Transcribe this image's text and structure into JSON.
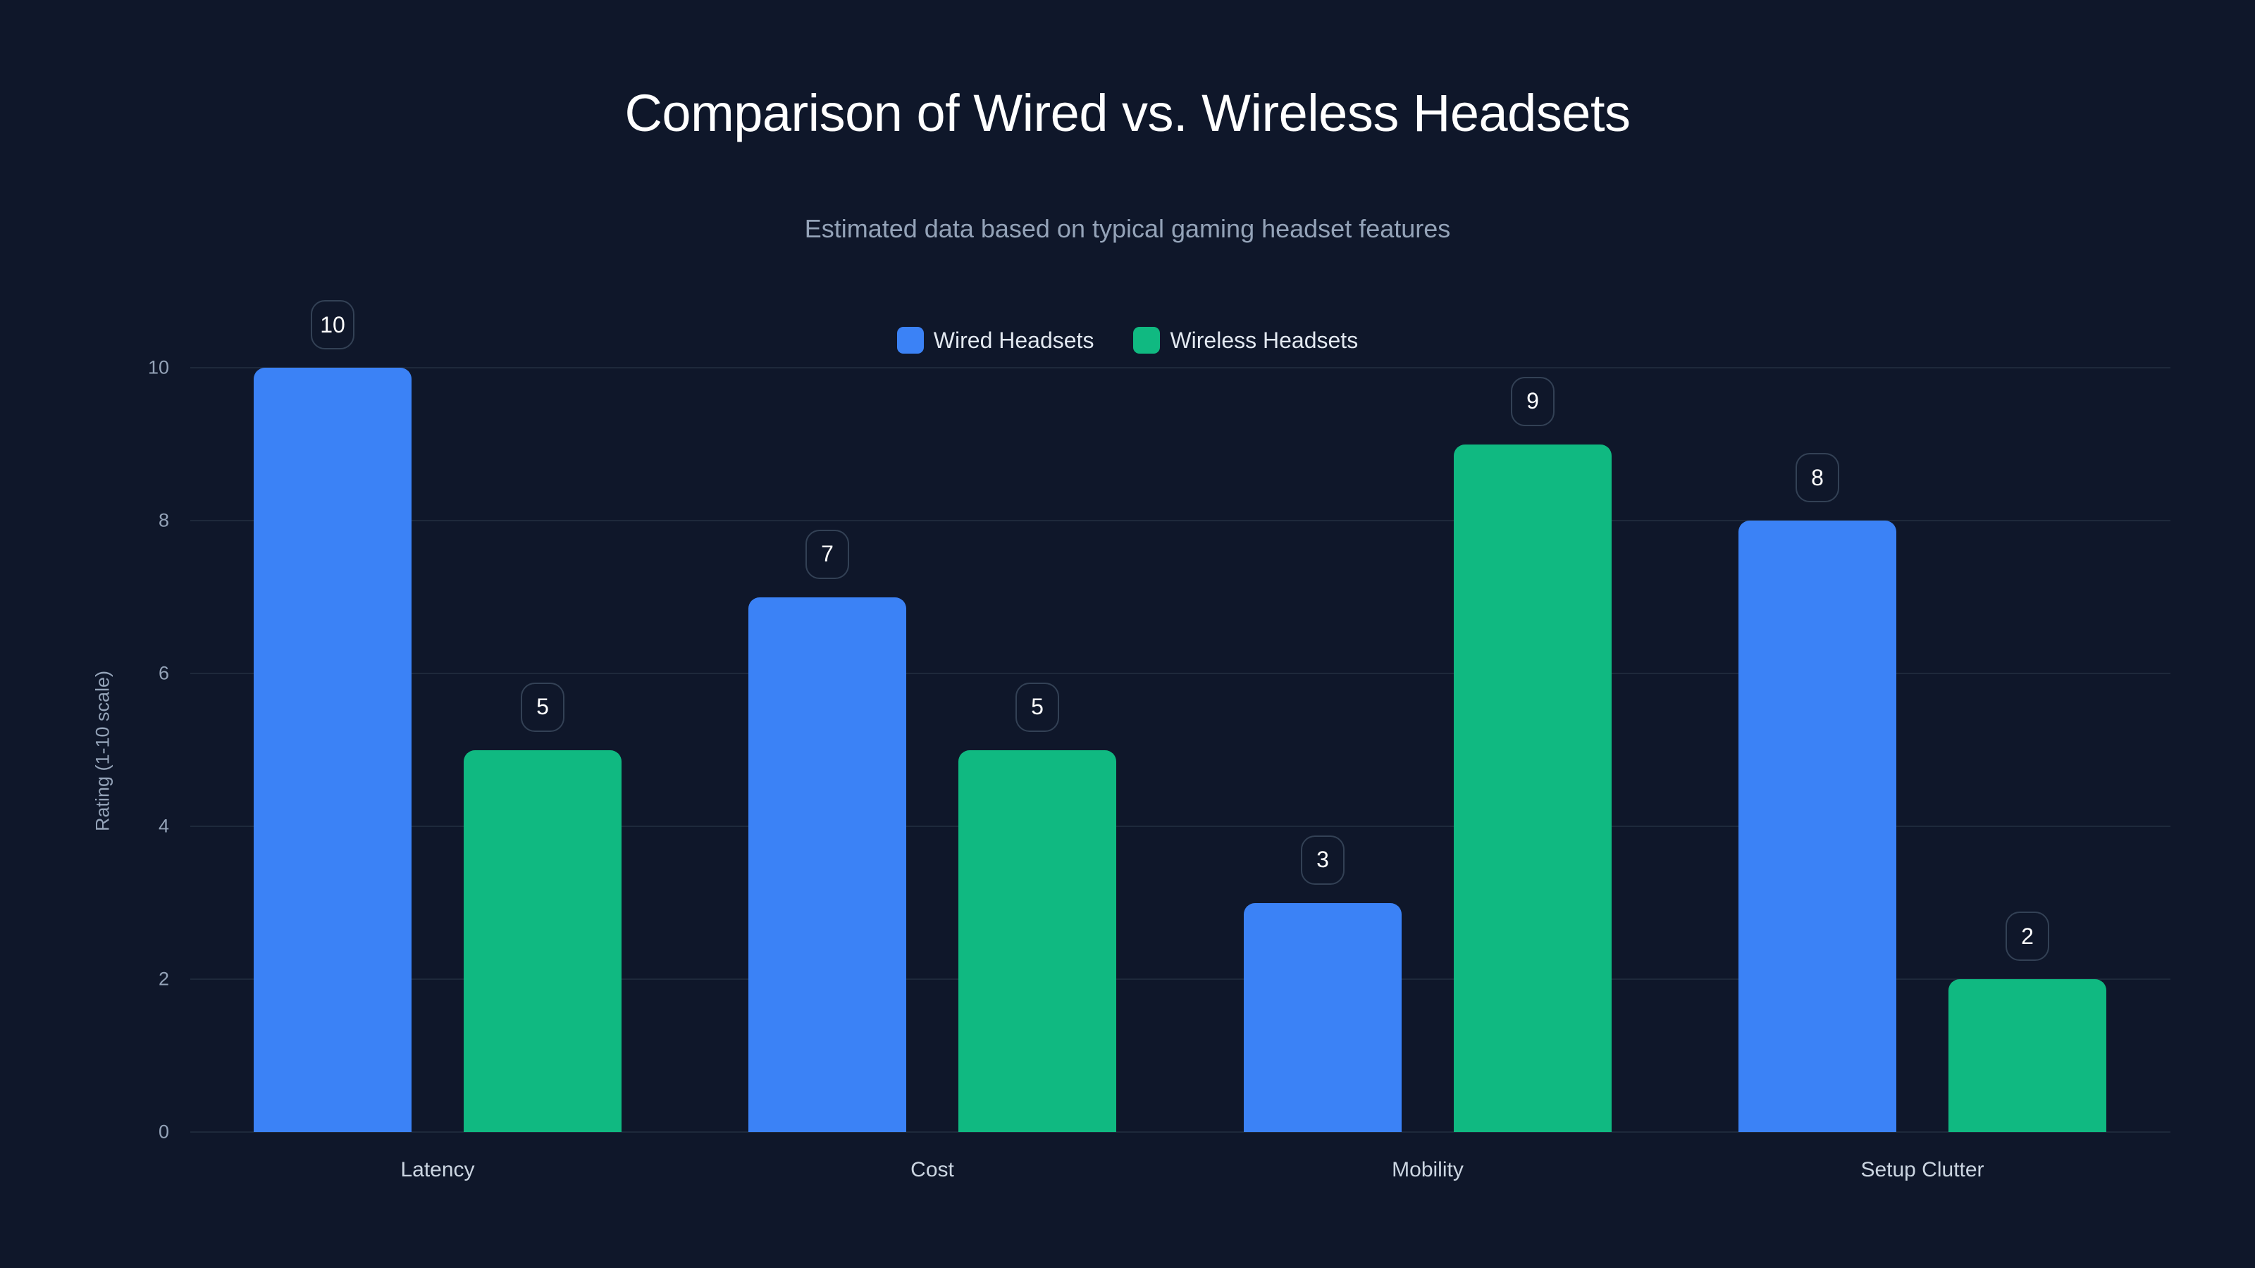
{
  "title": "Comparison of Wired vs. Wireless Headsets",
  "subtitle": "Estimated data based on typical gaming headset features",
  "legend": [
    {
      "label": "Wired Headsets",
      "color": "#3b82f6"
    },
    {
      "label": "Wireless Headsets",
      "color": "#10b981"
    }
  ],
  "y_axis": {
    "label": "Rating (1-10 scale)",
    "ticks": [
      "0",
      "2",
      "4",
      "6",
      "8",
      "10"
    ]
  },
  "x_axis": {
    "ticks": [
      "Latency",
      "Cost",
      "Mobility",
      "Setup Clutter"
    ]
  },
  "chart_data": {
    "type": "bar",
    "title": "Comparison of Wired vs. Wireless Headsets",
    "subtitle": "Estimated data based on typical gaming headset features",
    "categories": [
      "Latency",
      "Cost",
      "Mobility",
      "Setup Clutter"
    ],
    "series": [
      {
        "name": "Wired Headsets",
        "color": "#3b82f6",
        "values": [
          10,
          7,
          3,
          8
        ]
      },
      {
        "name": "Wireless Headsets",
        "color": "#10b981",
        "values": [
          5,
          5,
          9,
          2
        ]
      }
    ],
    "xlabel": "",
    "ylabel": "Rating (1-10 scale)",
    "ylim": [
      0,
      10
    ],
    "yticks": [
      0,
      2,
      4,
      6,
      8,
      10
    ],
    "grid": true,
    "legend_position": "top-center",
    "data_labels": true
  }
}
